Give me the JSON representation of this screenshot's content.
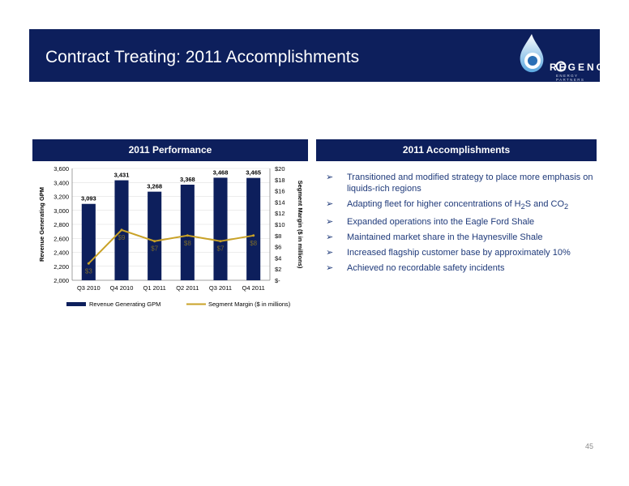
{
  "slide": {
    "title": "Contract Treating: 2011 Accomplishments",
    "page_number": "45"
  },
  "logo": {
    "word": "REGENCY",
    "subtitle": "ENERGY PARTNERS"
  },
  "sections": {
    "left_header": "2011 Performance",
    "right_header": "2011 Accomplishments"
  },
  "bullets": [
    {
      "text": "Transitioned and modified strategy to place more emphasis on liquids-rich regions"
    },
    {
      "pre": "Adapting fleet for higher concentrations of H",
      "sub1": "2",
      "mid": "S and CO",
      "sub2": "2"
    },
    {
      "text": "Expanded operations into the Eagle Ford Shale"
    },
    {
      "text": "Maintained market share in the Haynesville Shale"
    },
    {
      "text": "Increased flagship customer base by approximately 10%"
    },
    {
      "text": "Achieved no recordable safety incidents"
    }
  ],
  "chart_data": {
    "type": "bar",
    "categories": [
      "Q3 2010",
      "Q4 2010",
      "Q1 2011",
      "Q2 2011",
      "Q3 2011",
      "Q4 2011"
    ],
    "series": [
      {
        "name": "Revenue Generating GPM",
        "type": "bar",
        "axis": "left",
        "values": [
          3093,
          3431,
          3268,
          3368,
          3468,
          3465
        ],
        "labels": [
          "3,093",
          "3,431",
          "3,268",
          "3,368",
          "3,468",
          "3,465"
        ]
      },
      {
        "name": "Segment Margin ($ in millions)",
        "type": "line",
        "axis": "right",
        "values": [
          3,
          9,
          7,
          8,
          7,
          8
        ],
        "labels": [
          "$3",
          "$9",
          "$7",
          "$8",
          "$7",
          "$8"
        ]
      }
    ],
    "ylabel": "Revenue Generating GPM",
    "y2label": "Segment Margin ($ in millions)",
    "ylim": [
      2000,
      3600
    ],
    "y2lim": [
      0,
      20
    ],
    "yticks": [
      "2,000",
      "2,200",
      "2,400",
      "2,600",
      "2,800",
      "3,000",
      "3,200",
      "3,400",
      "3,600"
    ],
    "y2ticks": [
      "$-",
      "$2",
      "$4",
      "$6",
      "$8",
      "$10",
      "$12",
      "$14",
      "$16",
      "$18",
      "$20"
    ],
    "legend": "bottom",
    "colors": {
      "bar": "#0d1f5c",
      "line": "#c9a227",
      "grid": "#d9d9d9"
    }
  }
}
